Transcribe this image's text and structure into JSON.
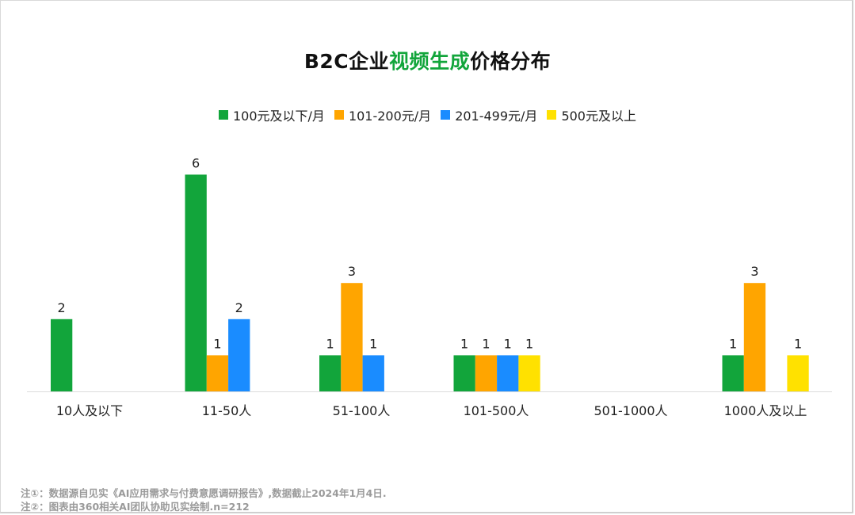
{
  "title": {
    "prefix": "B2C企业",
    "highlight": "视频生成",
    "suffix": "价格分布"
  },
  "legend": [
    {
      "label": "100元及以下/月",
      "color": "#12a53b"
    },
    {
      "label": "101-200元/月",
      "color": "#ffa500"
    },
    {
      "label": "201-499元/月",
      "color": "#1a8cff"
    },
    {
      "label": "500元及以上",
      "color": "#ffe100"
    }
  ],
  "chart_data": {
    "type": "bar",
    "title": "B2C企业视频生成价格分布",
    "categories": [
      "10人及以下",
      "11-50人",
      "51-100人",
      "101-500人",
      "501-1000人",
      "1000人及以上"
    ],
    "series": [
      {
        "name": "100元及以下/月",
        "color": "#12a53b",
        "values": [
          2,
          6,
          1,
          1,
          0,
          1
        ]
      },
      {
        "name": "101-200元/月",
        "color": "#ffa500",
        "values": [
          0,
          1,
          3,
          1,
          0,
          3
        ]
      },
      {
        "name": "201-499元/月",
        "color": "#1a8cff",
        "values": [
          0,
          2,
          1,
          1,
          0,
          0
        ]
      },
      {
        "name": "500元及以上",
        "color": "#ffe100",
        "values": [
          0,
          0,
          0,
          1,
          0,
          1
        ]
      }
    ],
    "ylim": [
      0,
      6
    ],
    "grid": false,
    "legend_position": "top"
  },
  "notes": [
    "注①：数据源自见实《AI应用需求与付费意愿调研报告》,数据截止2024年1月4日.",
    "注②：图表由360相关AI团队协助见实绘制.n=212"
  ]
}
